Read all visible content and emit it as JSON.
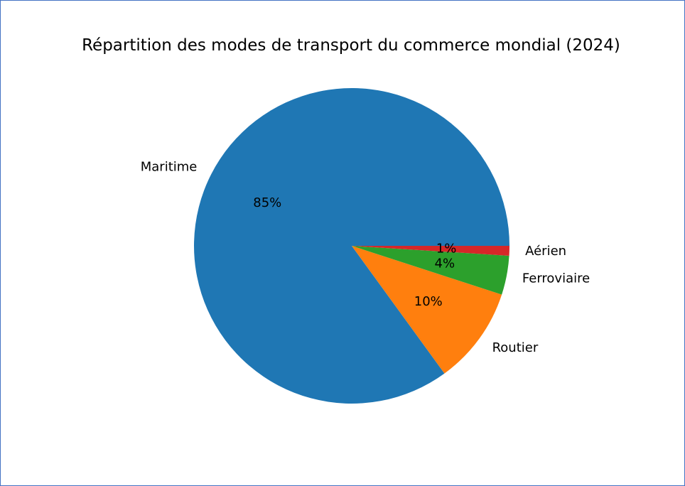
{
  "chart_data": {
    "type": "pie",
    "title": "Répartition des modes de transport du commerce mondial (2024)",
    "categories": [
      "Maritime",
      "Routier",
      "Ferroviaire",
      "Aérien"
    ],
    "values": [
      85,
      10,
      4,
      1
    ],
    "value_labels": [
      "85%",
      "10%",
      "4%",
      "1%"
    ],
    "colors": [
      "#1f77b4",
      "#ff7f0e",
      "#2ca02c",
      "#d62728"
    ],
    "start_angle_deg": 0,
    "direction": "counterclockwise",
    "legend": "none"
  }
}
